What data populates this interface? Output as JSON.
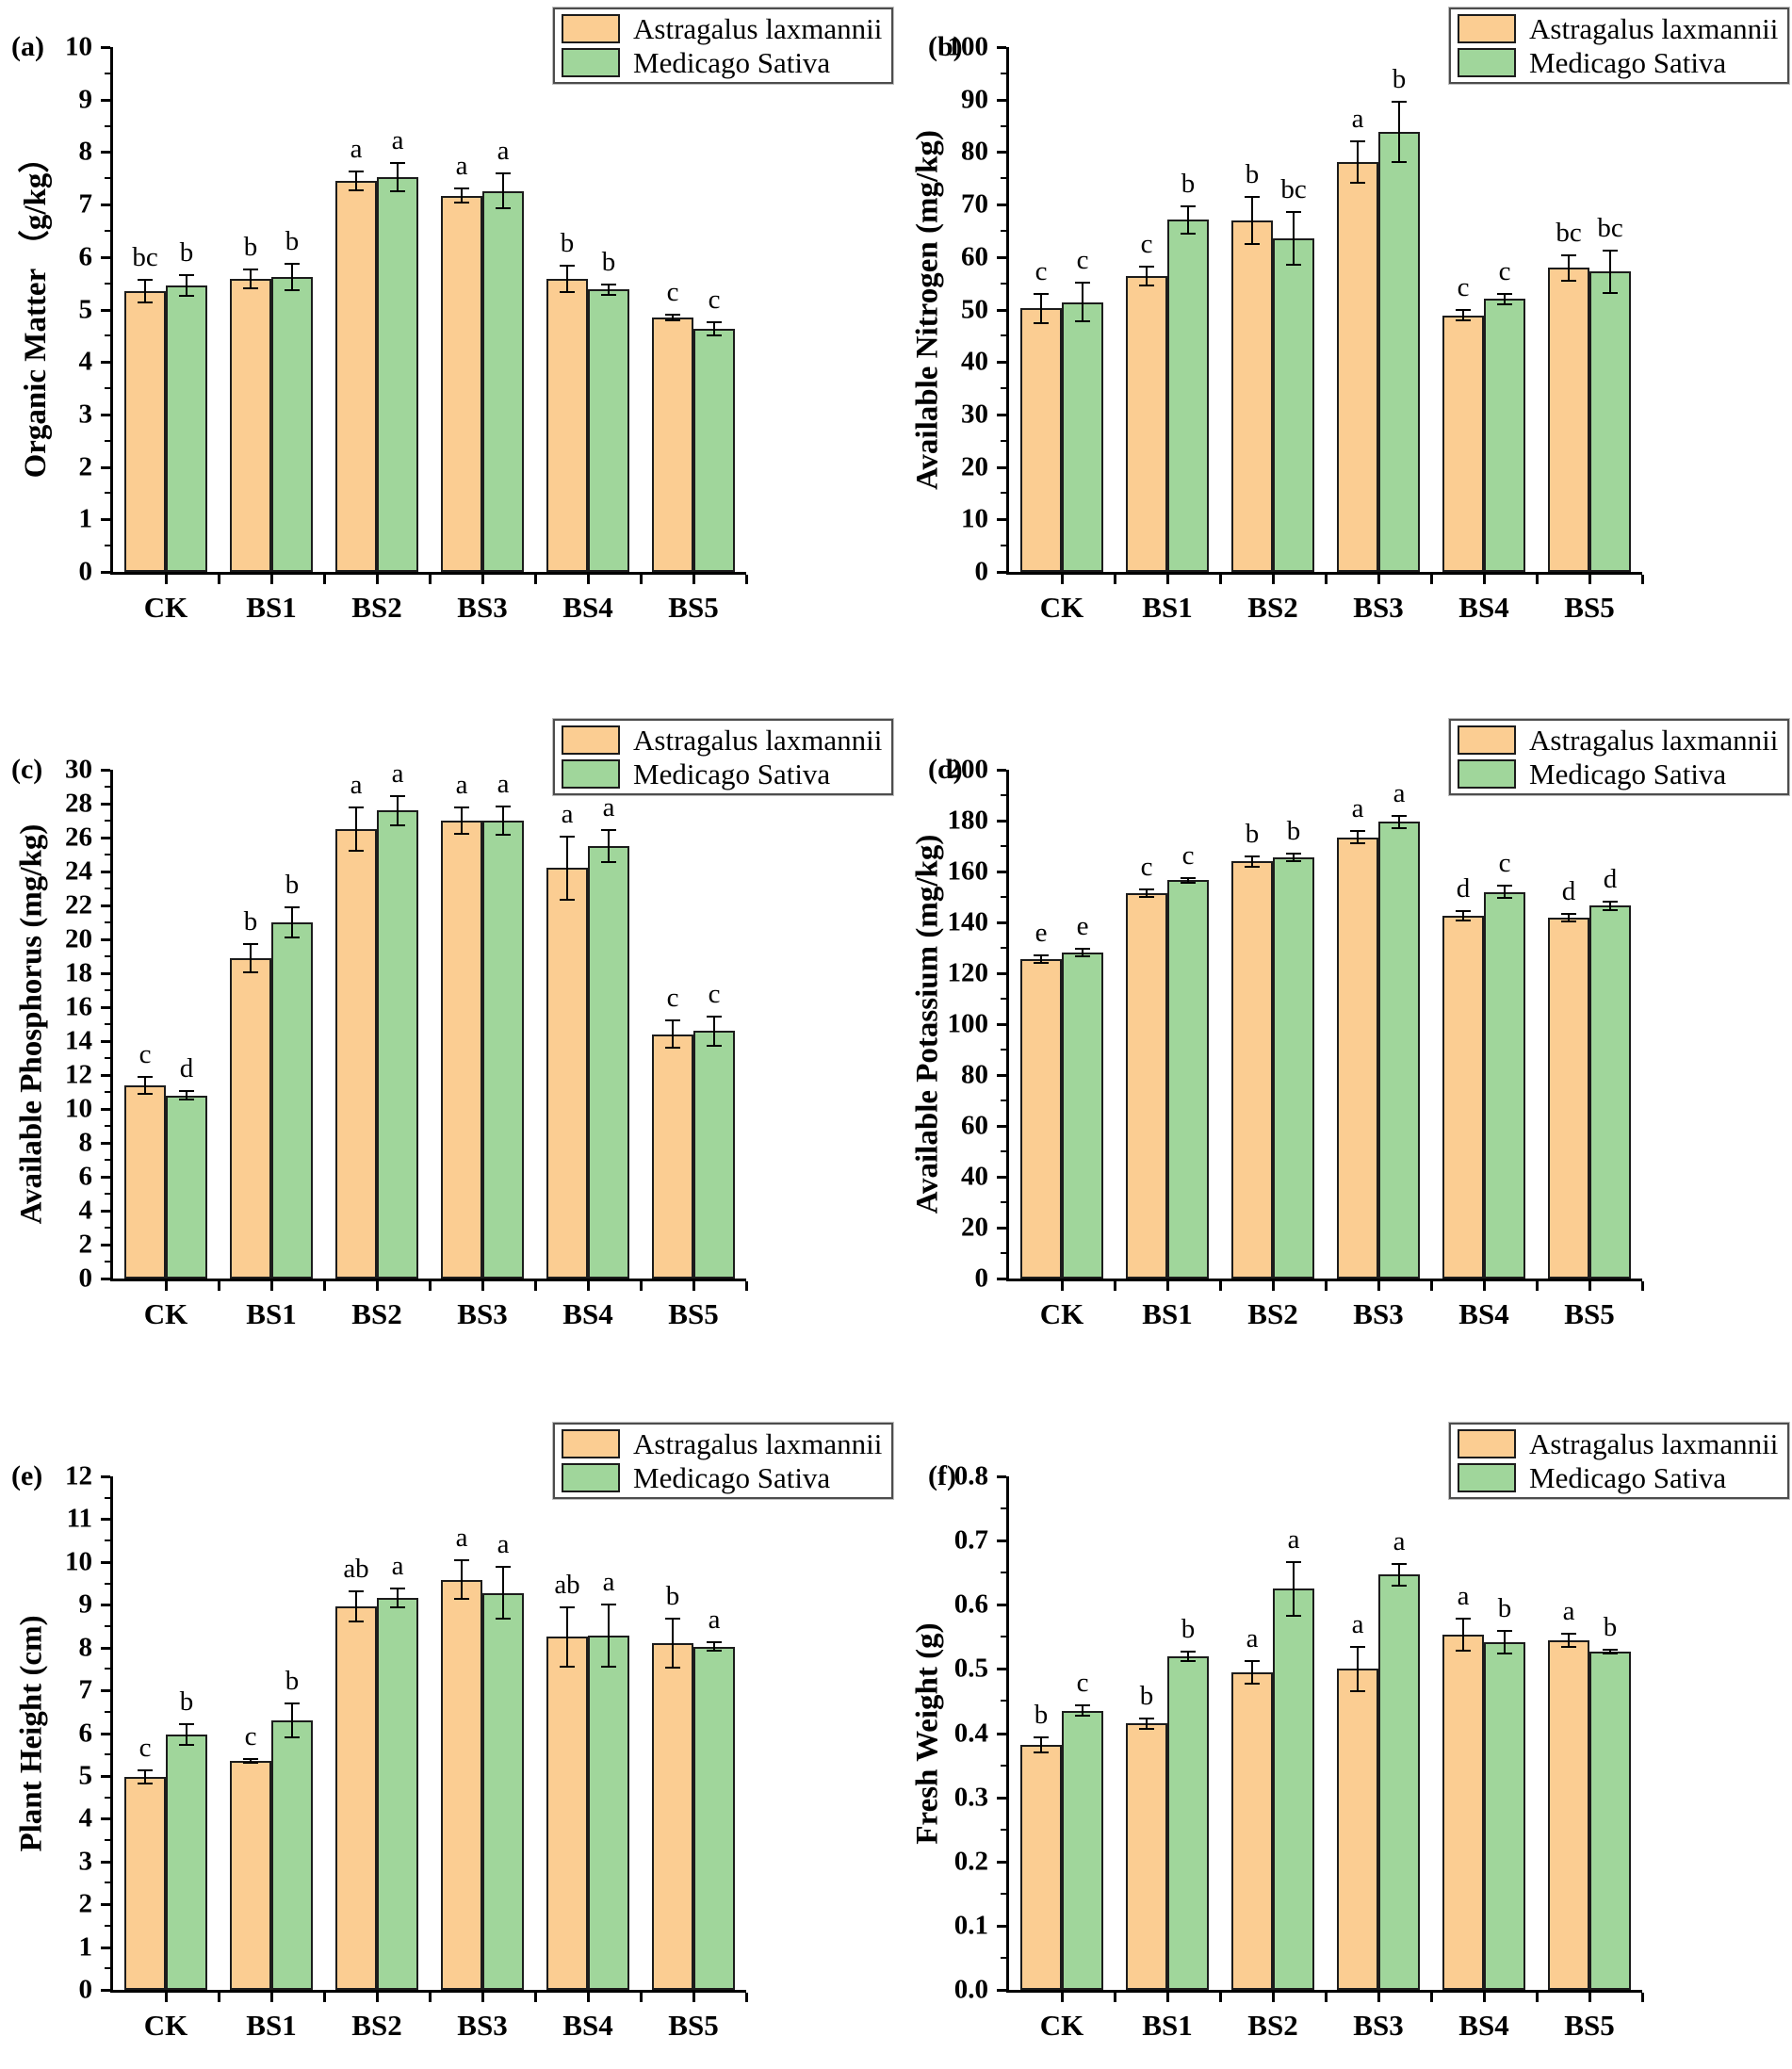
{
  "figure": {
    "background": "#ffffff"
  },
  "colors": {
    "series1_fill": "#fbcd92",
    "series2_fill": "#a0d69b",
    "bar_border": "#1c1c1c",
    "axis_color": "#000000",
    "legend_border": "#4d4d4d",
    "text_color": "#000000"
  },
  "legend": {
    "position": "top-right",
    "items": [
      {
        "label": "Astragalus laxmannii",
        "color": "#fbcd92"
      },
      {
        "label": "Medicago Sativa",
        "color": "#a0d69b"
      }
    ]
  },
  "chart_data": [
    {
      "type": "bar",
      "panel_label": "(a)",
      "ylabel": "Organic Matter （g/kg）",
      "xlabel": "",
      "ylim": [
        0,
        10
      ],
      "ytick_step": 1,
      "ytick_decimals": 0,
      "grid": false,
      "legend_position": "top-right",
      "categories": [
        "CK",
        "BS1",
        "BS2",
        "BS3",
        "BS4",
        "BS5"
      ],
      "series": [
        {
          "name": "Astragalus laxmannii",
          "values": [
            5.35,
            5.58,
            7.45,
            7.17,
            5.58,
            4.85
          ],
          "errors": [
            0.22,
            0.18,
            0.18,
            0.14,
            0.25,
            0.05
          ],
          "sig_letters": [
            "bc",
            "b",
            "a",
            "a",
            "b",
            "c"
          ]
        },
        {
          "name": "Medicago Sativa",
          "values": [
            5.46,
            5.62,
            7.52,
            7.26,
            5.38,
            4.63
          ],
          "errors": [
            0.2,
            0.25,
            0.27,
            0.33,
            0.1,
            0.12
          ],
          "sig_letters": [
            "b",
            "b",
            "a",
            "a",
            "b",
            "c"
          ]
        }
      ]
    },
    {
      "type": "bar",
      "panel_label": "(b)",
      "ylabel": "Available Nitrogen (mg/kg)",
      "xlabel": "",
      "ylim": [
        0,
        100
      ],
      "ytick_step": 10,
      "ytick_decimals": 0,
      "grid": false,
      "legend_position": "top-right",
      "categories": [
        "CK",
        "BS1",
        "BS2",
        "BS3",
        "BS4",
        "BS5"
      ],
      "series": [
        {
          "name": "Astragalus laxmannii",
          "values": [
            50.2,
            56.4,
            67.0,
            78.1,
            48.9,
            57.9
          ],
          "errors": [
            2.8,
            1.8,
            4.5,
            3.9,
            1.0,
            2.5
          ],
          "sig_letters": [
            "c",
            "c",
            "b",
            "a",
            "c",
            "bc"
          ]
        },
        {
          "name": "Medicago Sativa",
          "values": [
            51.4,
            67.1,
            63.6,
            83.8,
            52.0,
            57.2
          ],
          "errors": [
            3.7,
            2.6,
            5.0,
            5.7,
            1.0,
            4.0
          ],
          "sig_letters": [
            "c",
            "b",
            "bc",
            "b",
            "c",
            "bc"
          ]
        }
      ]
    },
    {
      "type": "bar",
      "panel_label": "(c)",
      "ylabel": "Available Phosphorus (mg/kg)",
      "xlabel": "",
      "ylim": [
        0,
        30
      ],
      "ytick_step": 2,
      "ytick_decimals": 0,
      "grid": false,
      "legend_position": "top-right",
      "categories": [
        "CK",
        "BS1",
        "BS2",
        "BS3",
        "BS4",
        "BS5"
      ],
      "series": [
        {
          "name": "Astragalus laxmannii",
          "values": [
            11.4,
            18.9,
            26.5,
            27.0,
            24.2,
            14.4
          ],
          "errors": [
            0.5,
            0.85,
            1.3,
            0.8,
            1.85,
            0.8
          ],
          "sig_letters": [
            "c",
            "b",
            "a",
            "a",
            "a",
            "c"
          ]
        },
        {
          "name": "Medicago Sativa",
          "values": [
            10.8,
            21.0,
            27.6,
            27.0,
            25.5,
            14.6
          ],
          "errors": [
            0.25,
            0.9,
            0.85,
            0.85,
            0.95,
            0.85
          ],
          "sig_letters": [
            "d",
            "b",
            "a",
            "a",
            "a",
            "c"
          ]
        }
      ]
    },
    {
      "type": "bar",
      "panel_label": "(d)",
      "ylabel": "Available Potassium (mg/kg)",
      "xlabel": "",
      "ylim": [
        0,
        200
      ],
      "ytick_step": 20,
      "ytick_decimals": 0,
      "grid": false,
      "legend_position": "top-right",
      "categories": [
        "CK",
        "BS1",
        "BS2",
        "BS3",
        "BS4",
        "BS5"
      ],
      "series": [
        {
          "name": "Astragalus laxmannii",
          "values": [
            125.5,
            151.5,
            164.0,
            173.5,
            142.5,
            142.0
          ],
          "errors": [
            1.5,
            1.5,
            2.0,
            2.5,
            1.8,
            1.5
          ],
          "sig_letters": [
            "e",
            "c",
            "b",
            "a",
            "d",
            "d"
          ]
        },
        {
          "name": "Medicago Sativa",
          "values": [
            128.0,
            156.5,
            165.5,
            179.5,
            152.0,
            146.5
          ],
          "errors": [
            1.5,
            1.0,
            1.5,
            2.5,
            2.5,
            1.5
          ],
          "sig_letters": [
            "e",
            "c",
            "b",
            "a",
            "c",
            "d"
          ]
        }
      ]
    },
    {
      "type": "bar",
      "panel_label": "(e)",
      "ylabel": "Plant Height (cm)",
      "xlabel": "",
      "ylim": [
        0,
        12
      ],
      "ytick_step": 1,
      "ytick_decimals": 0,
      "grid": false,
      "legend_position": "top-right",
      "categories": [
        "CK",
        "BS1",
        "BS2",
        "BS3",
        "BS4",
        "BS5"
      ],
      "series": [
        {
          "name": "Astragalus laxmannii",
          "values": [
            4.97,
            5.35,
            8.97,
            9.58,
            8.25,
            8.1
          ],
          "errors": [
            0.15,
            0.05,
            0.35,
            0.45,
            0.7,
            0.58
          ],
          "sig_letters": [
            "c",
            "c",
            "ab",
            "a",
            "ab",
            "b"
          ]
        },
        {
          "name": "Medicago Sativa",
          "values": [
            5.97,
            6.3,
            9.17,
            9.28,
            8.28,
            8.02
          ],
          "errors": [
            0.25,
            0.4,
            0.22,
            0.6,
            0.72,
            0.1
          ],
          "sig_letters": [
            "b",
            "b",
            "a",
            "a",
            "a",
            "a"
          ]
        }
      ]
    },
    {
      "type": "bar",
      "panel_label": "(f)",
      "ylabel": "Fresh Weight (g)",
      "xlabel": "",
      "ylim": [
        0,
        0.8
      ],
      "ytick_step": 0.1,
      "ytick_decimals": 1,
      "grid": false,
      "legend_position": "top-right",
      "categories": [
        "CK",
        "BS1",
        "BS2",
        "BS3",
        "BS4",
        "BS5"
      ],
      "series": [
        {
          "name": "Astragalus laxmannii",
          "values": [
            0.382,
            0.415,
            0.495,
            0.5,
            0.553,
            0.545
          ],
          "errors": [
            0.012,
            0.008,
            0.018,
            0.035,
            0.025,
            0.01
          ],
          "sig_letters": [
            "b",
            "b",
            "a",
            "a",
            "a",
            "a"
          ]
        },
        {
          "name": "Medicago Sativa",
          "values": [
            0.435,
            0.52,
            0.625,
            0.647,
            0.542,
            0.527
          ],
          "errors": [
            0.008,
            0.007,
            0.042,
            0.017,
            0.018,
            0.003
          ],
          "sig_letters": [
            "c",
            "b",
            "a",
            "a",
            "b",
            "b"
          ]
        }
      ]
    }
  ]
}
